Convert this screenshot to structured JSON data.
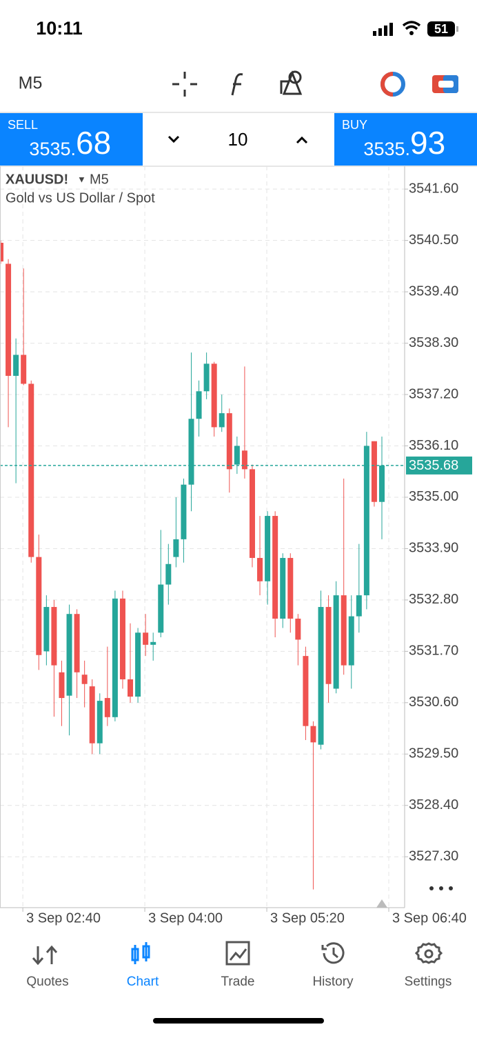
{
  "status_bar": {
    "time": "10:11",
    "battery": "51"
  },
  "toolbar": {
    "timeframe": "M5"
  },
  "trade_panel": {
    "sell_label": "SELL",
    "sell_big": "3535.",
    "sell_small": "68",
    "volume": "10",
    "buy_label": "BUY",
    "buy_big": "3535.",
    "buy_small": "93"
  },
  "chart_header": {
    "symbol": "XAUUSD!",
    "timeframe": "M5",
    "description": "Gold vs US Dollar / Spot"
  },
  "chart_data": {
    "type": "candlestick",
    "up_color": "#26a69a",
    "down_color": "#ef5350",
    "open": [
      3540.45,
      3540.0,
      3537.6,
      3538.05,
      3537.43,
      3533.72,
      3531.7,
      3532.65,
      3531.25,
      3530.75,
      3532.5,
      3531.2,
      3530.95,
      3529.73,
      3530.7,
      3530.29,
      3532.83,
      3531.1,
      3530.73,
      3532.1,
      3531.84,
      3532.1,
      3533.13,
      3533.72,
      3534.1,
      3535.27,
      3536.68,
      3537.27,
      3537.86,
      3536.5,
      3536.8,
      3535.7,
      3536.0,
      3535.6,
      3533.7,
      3533.2,
      3534.6,
      3532.4,
      3533.7,
      3532.4,
      3531.6,
      3530.1,
      3529.7,
      3532.65,
      3530.9,
      3532.9,
      3531.4,
      3532.45,
      3532.9,
      3536.2,
      3534.9
    ],
    "high": [
      3540.5,
      3540.1,
      3538.4,
      3539.9,
      3537.5,
      3534.2,
      3532.9,
      3532.8,
      3531.5,
      3532.7,
      3532.6,
      3531.5,
      3531.1,
      3530.8,
      3531.8,
      3533.0,
      3533.0,
      3532.3,
      3532.2,
      3532.5,
      3532.1,
      3534.3,
      3534.0,
      3535.0,
      3535.4,
      3538.1,
      3537.5,
      3538.1,
      3537.9,
      3537.2,
      3536.9,
      3536.3,
      3537.8,
      3535.7,
      3534.6,
      3534.7,
      3534.7,
      3533.8,
      3533.8,
      3532.5,
      3531.8,
      3530.2,
      3533.0,
      3532.9,
      3533.2,
      3535.4,
      3532.9,
      3534.0,
      3536.4,
      3536.2,
      3536.3
    ],
    "low": [
      3540.0,
      3536.5,
      3535.3,
      3537.4,
      3533.6,
      3531.3,
      3531.4,
      3530.3,
      3530.1,
      3529.9,
      3530.7,
      3530.5,
      3529.5,
      3529.5,
      3530.1,
      3530.2,
      3530.9,
      3530.6,
      3530.6,
      3531.6,
      3531.5,
      3532.0,
      3532.7,
      3533.5,
      3533.6,
      3534.7,
      3536.3,
      3537.1,
      3536.3,
      3536.4,
      3535.1,
      3535.5,
      3535.4,
      3533.5,
      3532.9,
      3532.7,
      3532.0,
      3532.2,
      3532.1,
      3531.4,
      3529.8,
      3526.6,
      3529.6,
      3530.6,
      3530.8,
      3531.2,
      3530.9,
      3532.1,
      3532.6,
      3534.8,
      3534.1
    ],
    "close": [
      3540.05,
      3537.6,
      3538.05,
      3537.43,
      3533.72,
      3531.62,
      3532.65,
      3531.4,
      3530.7,
      3532.5,
      3531.25,
      3531.0,
      3529.73,
      3530.64,
      3530.29,
      3532.83,
      3531.1,
      3530.73,
      3532.1,
      3531.84,
      3531.9,
      3533.13,
      3533.57,
      3534.1,
      3535.27,
      3536.68,
      3537.27,
      3537.86,
      3536.5,
      3536.8,
      3535.6,
      3536.1,
      3535.6,
      3533.7,
      3533.2,
      3534.6,
      3532.4,
      3533.7,
      3532.4,
      3531.95,
      3530.1,
      3529.75,
      3532.65,
      3531.0,
      3532.9,
      3531.4,
      3532.45,
      3532.9,
      3536.1,
      3534.9,
      3535.68
    ],
    "current_price": 3535.68,
    "current_price_color": "#26a69a",
    "ylim": [
      3526.21,
      3542.09
    ],
    "yticks": [
      {
        "value": 3541.6,
        "label": "3541.60"
      },
      {
        "value": 3540.5,
        "label": "3540.50"
      },
      {
        "value": 3539.4,
        "label": "3539.40"
      },
      {
        "value": 3538.3,
        "label": "3538.30"
      },
      {
        "value": 3537.2,
        "label": "3537.20"
      },
      {
        "value": 3536.1,
        "label": "3536.10"
      },
      {
        "value": 3535.0,
        "label": "3535.00"
      },
      {
        "value": 3533.9,
        "label": "3533.90"
      },
      {
        "value": 3532.8,
        "label": "3532.80"
      },
      {
        "value": 3531.7,
        "label": "3531.70"
      },
      {
        "value": 3530.6,
        "label": "3530.60"
      },
      {
        "value": 3529.5,
        "label": "3529.50"
      },
      {
        "value": 3528.4,
        "label": "3528.40"
      },
      {
        "value": 3527.3,
        "label": "3527.30"
      }
    ],
    "xtick_labels": [
      "3 Sep 02:40",
      "3 Sep 04:00",
      "3 Sep 05:20",
      "3 Sep 06:40"
    ],
    "grid": true
  },
  "tab_bar": {
    "tabs": [
      "Quotes",
      "Chart",
      "Trade",
      "History",
      "Settings"
    ],
    "active": 1
  }
}
